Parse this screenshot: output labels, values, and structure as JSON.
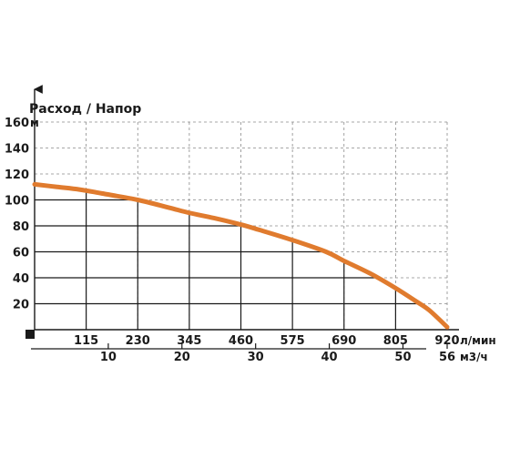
{
  "chart_data": {
    "type": "line",
    "title": "Расход / Напор",
    "y_unit": "м",
    "x_unit": "л/мин",
    "x2_unit": "м3/ч",
    "ylim": [
      0,
      160
    ],
    "y_ticks": [
      20,
      40,
      60,
      80,
      100,
      120,
      140,
      160
    ],
    "y_tick_labels": [
      "20",
      "40",
      "60",
      "80",
      "100",
      "120",
      "140",
      "160"
    ],
    "xlim": [
      0,
      920
    ],
    "x_ticks": [
      115,
      230,
      345,
      460,
      575,
      690,
      805,
      920
    ],
    "x_tick_labels": [
      "115",
      "230",
      "345",
      "460",
      "575",
      "690",
      "805",
      "920"
    ],
    "x2_ticks": [
      10,
      20,
      30,
      40,
      50,
      56
    ],
    "x2_tick_labels": [
      "10",
      "20",
      "30",
      "40",
      "50",
      "56"
    ],
    "grid": true,
    "series_color": "#e07b2e",
    "series": [
      {
        "x": [
          0,
          50,
          100,
          150,
          230,
          300,
          345,
          400,
          460,
          500,
          575,
          650,
          690,
          750,
          805,
          850,
          880,
          920
        ],
        "y": [
          112,
          110,
          108,
          105,
          100,
          94,
          90,
          86,
          81,
          77,
          69,
          60,
          53,
          43,
          32,
          22,
          15,
          2
        ]
      }
    ]
  }
}
